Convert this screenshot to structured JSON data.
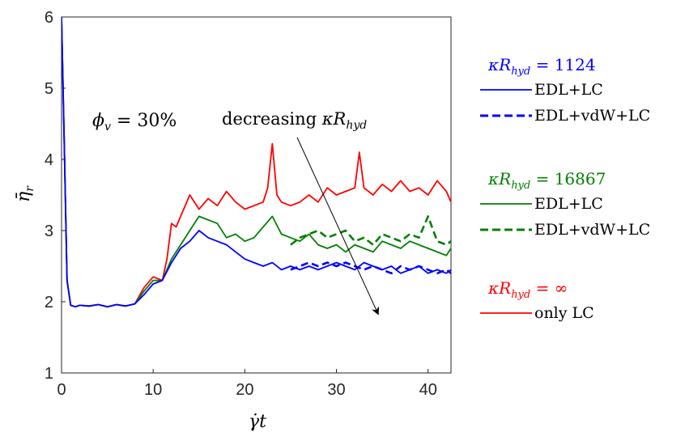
{
  "chart_data": {
    "type": "line",
    "xlabel": "γ̇t",
    "ylabel": "η̄r",
    "xlim": [
      0,
      42.5
    ],
    "ylim": [
      1,
      6
    ],
    "xticks": [
      0,
      10,
      20,
      30,
      40
    ],
    "yticks": [
      1,
      2,
      3,
      4,
      5,
      6
    ],
    "grid": false,
    "legend_position": "outside-right",
    "annotations": {
      "phi": "ϕv = 30%",
      "arrow_label": "decreasing κRhyd"
    },
    "legend_groups": [
      {
        "header": "κRhyd = 1124",
        "color": "#0000ff",
        "entries": [
          {
            "label": "EDL+LC",
            "style": "solid"
          },
          {
            "label": "EDL+vdW+LC",
            "style": "dashed"
          }
        ]
      },
      {
        "header": "κRhyd = 16867",
        "color": "#007f00",
        "entries": [
          {
            "label": "EDL+LC",
            "style": "solid"
          },
          {
            "label": "EDL+vdW+LC",
            "style": "dashed"
          }
        ]
      },
      {
        "header": "κRhyd = ∞",
        "color": "#ff0000",
        "entries": [
          {
            "label": "only LC",
            "style": "solid"
          }
        ]
      }
    ],
    "series": [
      {
        "name": "κRhyd = ∞, only LC",
        "color": "#ff0000",
        "style": "solid",
        "x": [
          0,
          0.3,
          0.6,
          1.0,
          1.5,
          2,
          3,
          4,
          5,
          6,
          7,
          8,
          9,
          10,
          11,
          11.5,
          12,
          12.5,
          13,
          14,
          15,
          16,
          17,
          18,
          19,
          20,
          21,
          22,
          22.5,
          23,
          23.5,
          24,
          25,
          26,
          27,
          28,
          29,
          30,
          31,
          32,
          32.5,
          33,
          34,
          35,
          36,
          37,
          38,
          39,
          40,
          41,
          42,
          42.5
        ],
        "y": [
          6,
          4.2,
          2.3,
          1.95,
          1.93,
          1.95,
          1.94,
          1.96,
          1.93,
          1.96,
          1.94,
          1.97,
          2.2,
          2.35,
          2.3,
          2.6,
          3.1,
          3.05,
          3.2,
          3.5,
          3.3,
          3.45,
          3.35,
          3.55,
          3.4,
          3.3,
          3.35,
          3.4,
          3.6,
          4.22,
          3.5,
          3.4,
          3.35,
          3.4,
          3.5,
          3.4,
          3.6,
          3.5,
          3.55,
          3.6,
          4.1,
          3.6,
          3.5,
          3.65,
          3.55,
          3.7,
          3.55,
          3.6,
          3.5,
          3.7,
          3.55,
          3.4
        ]
      },
      {
        "name": "κRhyd = 16867, EDL+LC",
        "color": "#007f00",
        "style": "solid",
        "x": [
          0,
          0.3,
          0.6,
          1.0,
          1.5,
          2,
          3,
          4,
          5,
          6,
          7,
          8,
          9,
          10,
          11,
          12,
          13,
          14,
          15,
          16,
          17,
          18,
          19,
          20,
          21,
          22,
          23,
          24,
          25,
          26,
          27,
          28,
          29,
          30,
          31,
          32,
          33,
          34,
          35,
          36,
          37,
          38,
          39,
          40,
          41,
          42,
          42.5
        ],
        "y": [
          6,
          4.2,
          2.3,
          1.95,
          1.93,
          1.95,
          1.94,
          1.96,
          1.93,
          1.96,
          1.94,
          1.97,
          2.15,
          2.3,
          2.3,
          2.6,
          2.8,
          3.0,
          3.2,
          3.15,
          3.1,
          2.9,
          2.95,
          2.85,
          2.9,
          3.05,
          3.2,
          2.95,
          2.9,
          2.85,
          2.95,
          2.8,
          2.75,
          2.8,
          2.7,
          2.8,
          2.75,
          2.7,
          2.85,
          2.8,
          2.75,
          2.85,
          2.8,
          2.75,
          2.7,
          2.65,
          2.75
        ]
      },
      {
        "name": "κRhyd = 16867, EDL+vdW+LC",
        "color": "#007f00",
        "style": "dashed",
        "x": [
          25,
          26,
          27,
          28,
          29,
          30,
          31,
          32,
          33,
          34,
          35,
          36,
          37,
          38,
          39,
          40,
          41,
          42,
          42.5
        ],
        "y": [
          2.8,
          2.9,
          2.95,
          3.0,
          2.9,
          2.95,
          3.0,
          2.85,
          2.9,
          2.8,
          2.95,
          2.9,
          2.85,
          2.95,
          2.9,
          3.2,
          2.85,
          2.8,
          2.85
        ]
      },
      {
        "name": "κRhyd = 1124, EDL+LC",
        "color": "#0000ff",
        "style": "solid",
        "x": [
          0,
          0.3,
          0.6,
          1.0,
          1.5,
          2,
          3,
          4,
          5,
          6,
          7,
          8,
          9,
          10,
          11,
          12,
          13,
          14,
          15,
          16,
          17,
          18,
          19,
          20,
          21,
          22,
          23,
          24,
          25,
          26,
          27,
          28,
          29,
          30,
          31,
          32,
          33,
          34,
          35,
          36,
          37,
          38,
          39,
          40,
          41,
          42,
          42.5
        ],
        "y": [
          6,
          4.2,
          2.3,
          1.95,
          1.93,
          1.95,
          1.94,
          1.96,
          1.93,
          1.96,
          1.94,
          1.97,
          2.1,
          2.25,
          2.3,
          2.55,
          2.75,
          2.85,
          3.0,
          2.9,
          2.85,
          2.8,
          2.7,
          2.6,
          2.55,
          2.5,
          2.55,
          2.45,
          2.5,
          2.45,
          2.5,
          2.45,
          2.5,
          2.55,
          2.5,
          2.45,
          2.55,
          2.5,
          2.45,
          2.5,
          2.4,
          2.45,
          2.5,
          2.4,
          2.45,
          2.4,
          2.45
        ]
      },
      {
        "name": "κRhyd = 1124, EDL+vdW+LC",
        "color": "#0000ff",
        "style": "dashed",
        "x": [
          25,
          26,
          27,
          28,
          29,
          30,
          31,
          32,
          33,
          34,
          35,
          36,
          37,
          38,
          39,
          40,
          41,
          42,
          42.5
        ],
        "y": [
          2.45,
          2.5,
          2.55,
          2.5,
          2.55,
          2.5,
          2.55,
          2.5,
          2.45,
          2.5,
          2.45,
          2.4,
          2.5,
          2.45,
          2.5,
          2.45,
          2.4,
          2.45,
          2.4
        ]
      }
    ]
  }
}
